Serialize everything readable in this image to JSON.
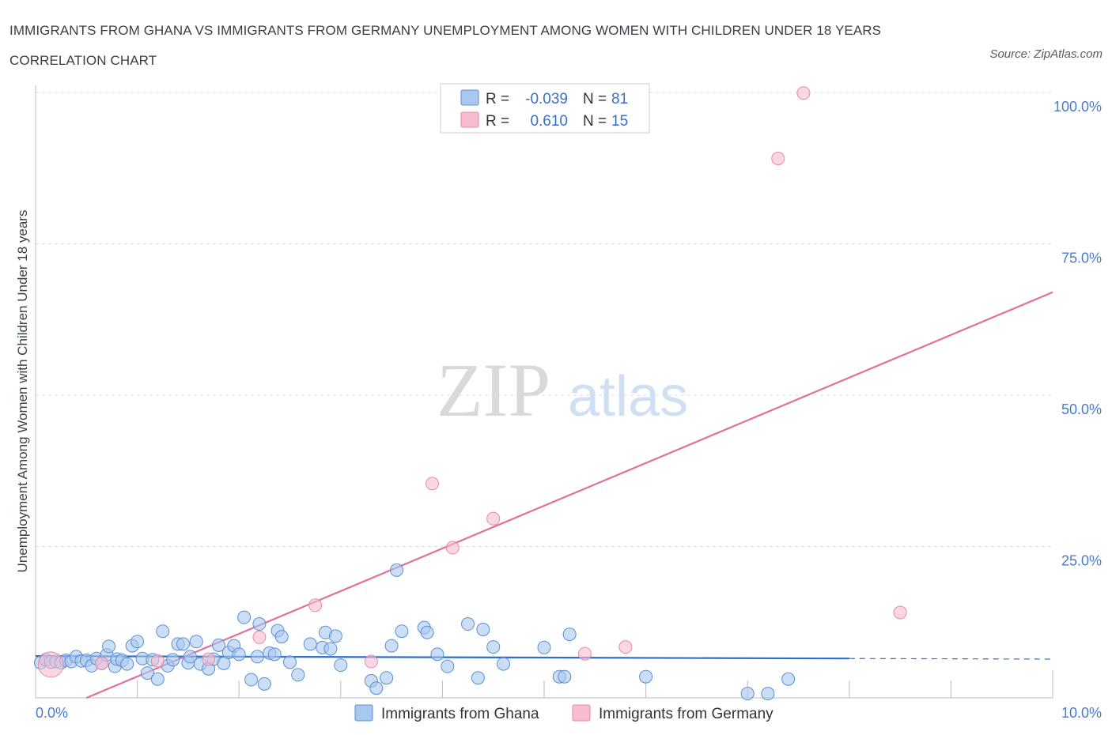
{
  "header": {
    "title": "IMMIGRANTS FROM GHANA VS IMMIGRANTS FROM GERMANY UNEMPLOYMENT AMONG WOMEN WITH CHILDREN UNDER 18 YEARS CORRELATION CHART",
    "source": "Source: ZipAtlas.com"
  },
  "watermark": {
    "zip": "ZIP",
    "atlas": "atlas"
  },
  "legend": {
    "rows": [
      {
        "r_label": "R =",
        "r_value": "-0.039",
        "n_label": "N =",
        "n_value": "81"
      },
      {
        "r_label": "R =",
        "r_value": "0.610",
        "n_label": "N =",
        "n_value": "15"
      }
    ]
  },
  "colors": {
    "ghana_fill": "#a9c8f0",
    "ghana_stroke": "#5b8fd6",
    "ghana_line": "#2e6fcc",
    "germany_fill": "#f7bcd0",
    "germany_stroke": "#e48aa8",
    "germany_line": "#e0709a",
    "grid": "#dddddd",
    "axis": "#bbbbbb"
  },
  "chart_data": {
    "type": "scatter",
    "title": "IMMIGRANTS FROM GHANA VS IMMIGRANTS FROM GERMANY UNEMPLOYMENT AMONG WOMEN WITH CHILDREN UNDER 18 YEARS CORRELATION CHART",
    "xlabel": "",
    "ylabel": "Unemployment Among Women with Children Under 18 years",
    "xlim": [
      0,
      10
    ],
    "ylim": [
      0,
      100
    ],
    "x_tick_labels": [
      "0.0%",
      "10.0%"
    ],
    "y_ticks": [
      25,
      50,
      75,
      100
    ],
    "y_tick_labels": [
      "25.0%",
      "50.0%",
      "75.0%",
      "100.0%"
    ],
    "grid": true,
    "legend_position": "bottom",
    "series": [
      {
        "name": "Immigrants from Ghana",
        "R": -0.039,
        "N": 81,
        "trend": {
          "x0": 0,
          "y0": 6.9,
          "x1": 8.0,
          "y1": 6.5,
          "dash_to": 10.0
        },
        "points": [
          [
            0.05,
            5.8
          ],
          [
            0.1,
            6.3
          ],
          [
            0.15,
            5.9
          ],
          [
            0.2,
            6.0
          ],
          [
            0.25,
            5.8
          ],
          [
            0.3,
            6.2
          ],
          [
            0.35,
            6.0
          ],
          [
            0.4,
            6.8
          ],
          [
            0.45,
            6.1
          ],
          [
            0.5,
            6.2
          ],
          [
            0.55,
            5.3
          ],
          [
            0.6,
            6.5
          ],
          [
            0.65,
            5.7
          ],
          [
            0.7,
            7.1
          ],
          [
            0.72,
            8.5
          ],
          [
            0.78,
            5.2
          ],
          [
            0.8,
            6.4
          ],
          [
            0.85,
            6.2
          ],
          [
            0.9,
            5.6
          ],
          [
            0.95,
            8.6
          ],
          [
            1.0,
            9.3
          ],
          [
            1.05,
            6.5
          ],
          [
            1.1,
            4.1
          ],
          [
            1.15,
            6.3
          ],
          [
            1.2,
            3.1
          ],
          [
            1.25,
            11.0
          ],
          [
            1.3,
            5.3
          ],
          [
            1.35,
            6.3
          ],
          [
            1.4,
            8.9
          ],
          [
            1.45,
            8.9
          ],
          [
            1.5,
            5.8
          ],
          [
            1.52,
            6.8
          ],
          [
            1.58,
            9.3
          ],
          [
            1.62,
            5.6
          ],
          [
            1.7,
            4.8
          ],
          [
            1.75,
            6.4
          ],
          [
            1.8,
            8.7
          ],
          [
            1.85,
            5.7
          ],
          [
            1.9,
            7.5
          ],
          [
            1.95,
            8.6
          ],
          [
            2.0,
            7.2
          ],
          [
            2.05,
            13.3
          ],
          [
            2.12,
            3.0
          ],
          [
            2.18,
            6.8
          ],
          [
            2.2,
            12.2
          ],
          [
            2.25,
            2.3
          ],
          [
            2.3,
            7.4
          ],
          [
            2.35,
            7.2
          ],
          [
            2.38,
            11.1
          ],
          [
            2.42,
            10.1
          ],
          [
            2.5,
            5.9
          ],
          [
            2.58,
            3.8
          ],
          [
            2.7,
            8.9
          ],
          [
            2.82,
            8.3
          ],
          [
            2.85,
            10.8
          ],
          [
            2.9,
            8.1
          ],
          [
            2.95,
            10.2
          ],
          [
            3.0,
            5.4
          ],
          [
            3.3,
            2.8
          ],
          [
            3.35,
            1.6
          ],
          [
            3.45,
            3.3
          ],
          [
            3.5,
            8.6
          ],
          [
            3.55,
            21.1
          ],
          [
            3.6,
            11.0
          ],
          [
            3.82,
            11.6
          ],
          [
            3.85,
            10.8
          ],
          [
            3.95,
            7.2
          ],
          [
            4.05,
            5.2
          ],
          [
            4.25,
            12.2
          ],
          [
            4.35,
            3.3
          ],
          [
            4.4,
            11.3
          ],
          [
            4.5,
            8.4
          ],
          [
            4.6,
            5.6
          ],
          [
            5.0,
            8.3
          ],
          [
            5.15,
            3.5
          ],
          [
            5.2,
            3.5
          ],
          [
            5.25,
            10.5
          ],
          [
            6.0,
            3.5
          ],
          [
            7.0,
            0.7
          ],
          [
            7.2,
            0.7
          ],
          [
            7.4,
            3.1
          ]
        ]
      },
      {
        "name": "Immigrants from Germany",
        "R": 0.61,
        "N": 15,
        "trend": {
          "x0": 0.5,
          "y0": 0,
          "x1": 10.0,
          "y1": 67
        },
        "points": [
          [
            0.15,
            5.5
          ],
          [
            0.65,
            5.7
          ],
          [
            1.2,
            6.1
          ],
          [
            1.7,
            6.4
          ],
          [
            2.2,
            10.0
          ],
          [
            2.75,
            15.3
          ],
          [
            3.3,
            6.0
          ],
          [
            3.9,
            35.4
          ],
          [
            4.1,
            24.8
          ],
          [
            4.5,
            29.6
          ],
          [
            5.4,
            7.3
          ],
          [
            5.8,
            8.4
          ],
          [
            7.3,
            89.1
          ],
          [
            7.55,
            99.9
          ],
          [
            8.5,
            14.1
          ]
        ]
      }
    ]
  },
  "bottom_legend": [
    {
      "label": "Immigrants from Ghana"
    },
    {
      "label": "Immigrants from Germany"
    }
  ]
}
